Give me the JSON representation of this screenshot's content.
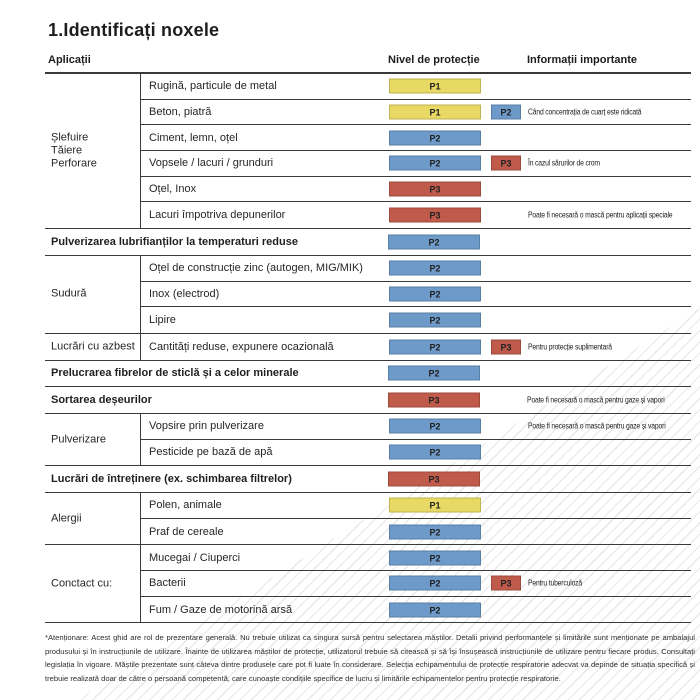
{
  "title": "1.Identificați noxele",
  "columns": {
    "applications": "Aplicații",
    "protection": "Nivel de protecție",
    "info": "Informații importante"
  },
  "colors": {
    "P1": "#e8d964",
    "P2": "#6d9ac8",
    "P3": "#c05a4b"
  },
  "sections": [
    {
      "type": "group",
      "label": "Șlefuire\nTăiere\nPerforare",
      "rows": [
        {
          "label": "Rugină, particule de metal",
          "level": "P1"
        },
        {
          "label": "Beton, piatră",
          "level": "P1",
          "level2": "P2",
          "info": "Când concentrația de cuarț este ridicată"
        },
        {
          "label": "Ciment, lemn, oțel",
          "level": "P2"
        },
        {
          "label": "Vopsele / lacuri / grunduri",
          "level": "P2",
          "level2": "P3",
          "info": "În cazul sărurilor de crom"
        },
        {
          "label": "Oțel, Inox",
          "level": "P3"
        },
        {
          "label": "Lacuri împotriva depunerilor",
          "level": "P3",
          "info": "Poate fi necesară o mască pentru aplicații speciale"
        }
      ]
    },
    {
      "type": "full",
      "label": "Pulverizarea lubrifianților la temperaturi reduse",
      "level": "P2"
    },
    {
      "type": "group",
      "label": "Sudură",
      "rows": [
        {
          "label": "Oțel de construcție zinc (autogen, MIG/MIK)",
          "level": "P2"
        },
        {
          "label": "Inox (electrod)",
          "level": "P2"
        },
        {
          "label": "Lipire",
          "level": "P2"
        }
      ]
    },
    {
      "type": "group",
      "label": "Lucrări cu azbest",
      "rows": [
        {
          "label": "Cantități reduse, expunere ocazională",
          "level": "P2",
          "level2": "P3",
          "info": "Pentru protecție suplimentară"
        }
      ]
    },
    {
      "type": "full",
      "label": "Prelucrarea fibrelor de sticlă și a celor minerale",
      "level": "P2"
    },
    {
      "type": "full",
      "label": "Sortarea deșeurilor",
      "level": "P3",
      "info": "Poate fi necesară o mască pentru gaze și vapori"
    },
    {
      "type": "group",
      "label": "Pulverizare",
      "rows": [
        {
          "label": "Vopsire prin pulverizare",
          "level": "P2",
          "info": "Poate fi necesară o mască pentru gaze și vapori"
        },
        {
          "label": "Pesticide pe bază de apă",
          "level": "P2"
        }
      ]
    },
    {
      "type": "full",
      "label": "Lucrări de întreținere (ex. schimbarea filtrelor)",
      "level": "P3"
    },
    {
      "type": "group",
      "label": "Alergii",
      "rows": [
        {
          "label": "Polen, animale",
          "level": "P1"
        },
        {
          "label": "Praf de cereale",
          "level": "P2"
        }
      ]
    },
    {
      "type": "group",
      "label": "Conctact cu:",
      "rows": [
        {
          "label": "Mucegai / Ciuperci",
          "level": "P2"
        },
        {
          "label": "Bacterii",
          "level": "P2",
          "level2": "P3",
          "info": "Pentru tuberculoză"
        },
        {
          "label": "Fum / Gaze de motorină arsă",
          "level": "P2"
        }
      ]
    }
  ],
  "footnote": "*Atenționare: Acest ghid are rol de prezentare generală. Nu trebuie utilizat ca singura sursă pentru selectarea măștilor. Detalii privind performanțele și limitările sunt menționate pe ambalajul produsului și în instrucțiunile de utilizare. Înainte de utilizarea măștilor de protecție, utilizatorul trebuie să citească și să își însușească instrucțiunile de utilizare pentru fiecare produs. Consultați legislația în vigoare. Măștile prezentate sunt câteva dintre produsele care pot fi luate în considerare. Selecția echipamentului de protecție respiratorie adecvat va depinde de situația specifică și trebuie realizată doar de către o persoană competentă, care cunoaște condițiile specifice de lucru și limitările echipamentelor pentru protecție respiratorie."
}
